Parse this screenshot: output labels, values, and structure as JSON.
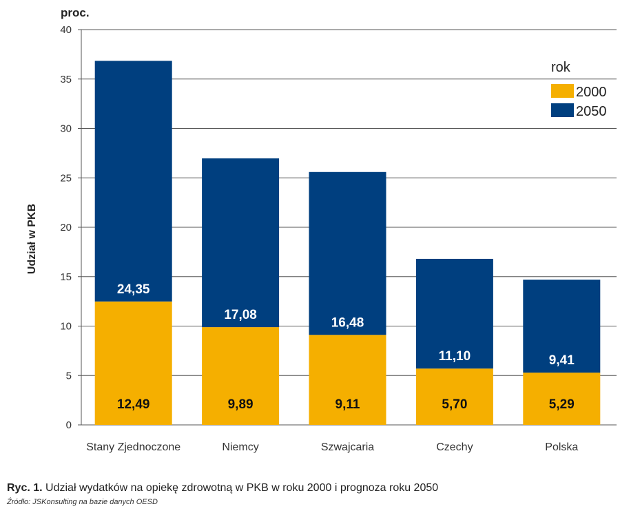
{
  "chart_data": {
    "type": "bar",
    "stacked": true,
    "unit_label": "proc.",
    "ylabel": "Udział w PKB",
    "xlabel": "",
    "ylim": [
      0,
      40
    ],
    "yticks": [
      0,
      5,
      10,
      15,
      20,
      25,
      30,
      35,
      40
    ],
    "grid": true,
    "categories": [
      "Stany Zjednoczone",
      "Niemcy",
      "Szwajcaria",
      "Czechy",
      "Polska"
    ],
    "series": [
      {
        "name": "2000",
        "values": [
          12.49,
          9.89,
          9.11,
          5.7,
          5.29
        ],
        "labels": [
          "12,49",
          "9,89",
          "9,11",
          "5,70",
          "5,29"
        ],
        "color": "#F5AF00"
      },
      {
        "name": "2050",
        "values": [
          24.35,
          17.08,
          16.48,
          11.1,
          9.41
        ],
        "labels": [
          "24,35",
          "17,08",
          "16,48",
          "11,10",
          "9,41"
        ],
        "color": "#003F7F"
      }
    ],
    "legend": {
      "title": "rok",
      "placement": "top-right"
    }
  },
  "caption": {
    "figure_number": "Ryc. 1.",
    "text": "Udział wydatków na opiekę zdrowotną w PKB w roku 2000 i prognoza roku 2050"
  },
  "source": "Źródło: JSKonsulting na bazie danych OESD"
}
